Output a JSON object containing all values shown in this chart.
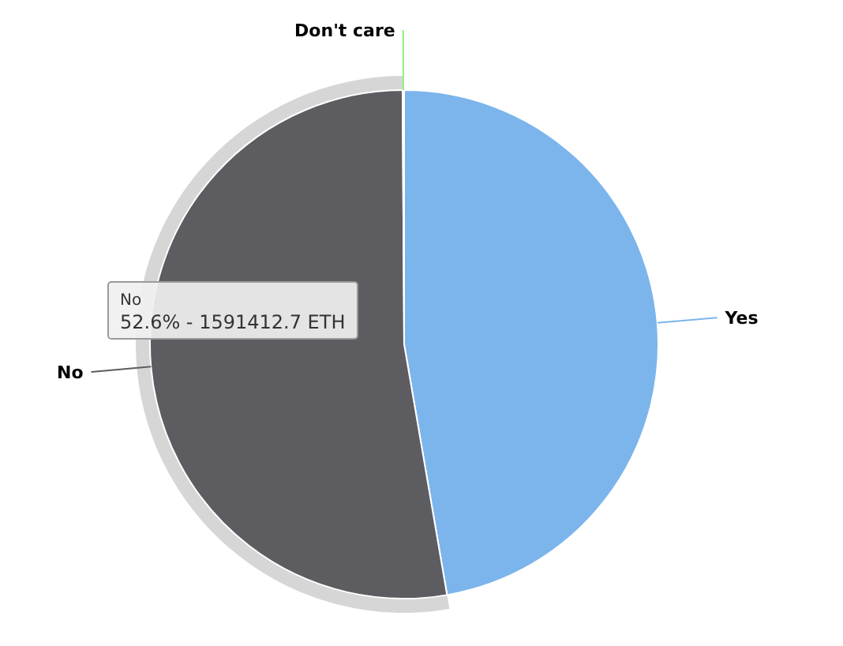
{
  "chart_data": {
    "type": "pie",
    "categories": [
      "Yes",
      "No",
      "Don't care"
    ],
    "values": [
      47.3,
      52.6,
      0.1
    ],
    "colors": [
      "#7cb5ec",
      "#5c5c61",
      "#90ed7d"
    ],
    "annotations": [
      "No",
      "52.6% - 1591412.7 ETH"
    ]
  }
}
